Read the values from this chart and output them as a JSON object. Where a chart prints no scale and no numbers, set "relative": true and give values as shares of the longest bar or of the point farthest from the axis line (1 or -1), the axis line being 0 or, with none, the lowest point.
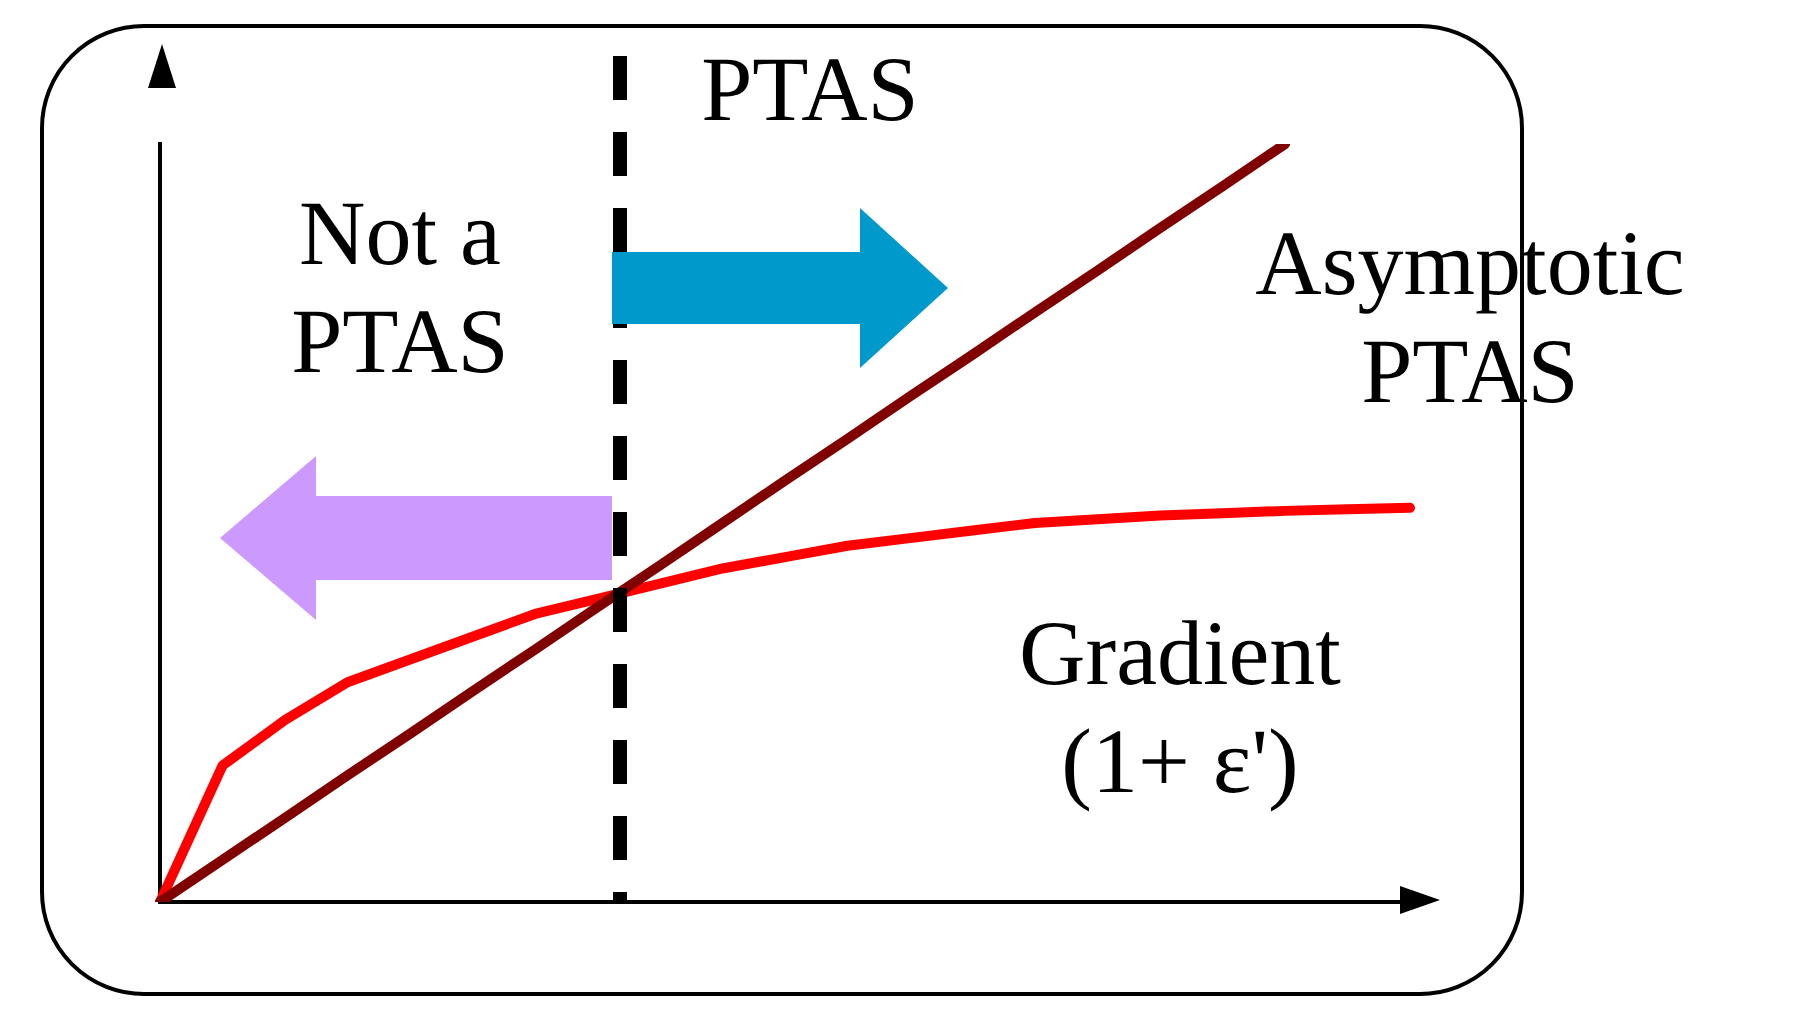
{
  "chart_data": {
    "type": "line",
    "relative": true,
    "categories": [
      null,
      null,
      null,
      null,
      null,
      null,
      null,
      null,
      null,
      null,
      null,
      null,
      null,
      null,
      null,
      null,
      null,
      null,
      null,
      null,
      null
    ],
    "tick_labels": false,
    "grid": false,
    "legend": false,
    "marker": "none",
    "series": [
      {
        "color": "#800000",
        "values": [
          0,
          0.0556,
          0.111,
          0.167,
          0.222,
          0.278,
          0.333,
          0.389,
          0.444,
          0.5,
          0.556,
          0.611,
          0.667,
          0.722,
          0.778,
          0.833,
          0.889,
          0.944,
          1,
          null,
          null
        ]
      },
      {
        "color": "#ff0000",
        "values": [
          0,
          0.18,
          0.24,
          0.29,
          0.32,
          0.35,
          0.38,
          0.4,
          0.42,
          0.44,
          0.455,
          0.47,
          0.48,
          0.49,
          0.5,
          0.505,
          0.51,
          0.513,
          0.516,
          0.518,
          0.52
        ]
      }
    ],
    "annotations": [
      "PTAS",
      "Not a PTAS",
      "Asymptotic PTAS",
      "Gradient (1+ ε')"
    ]
  }
}
